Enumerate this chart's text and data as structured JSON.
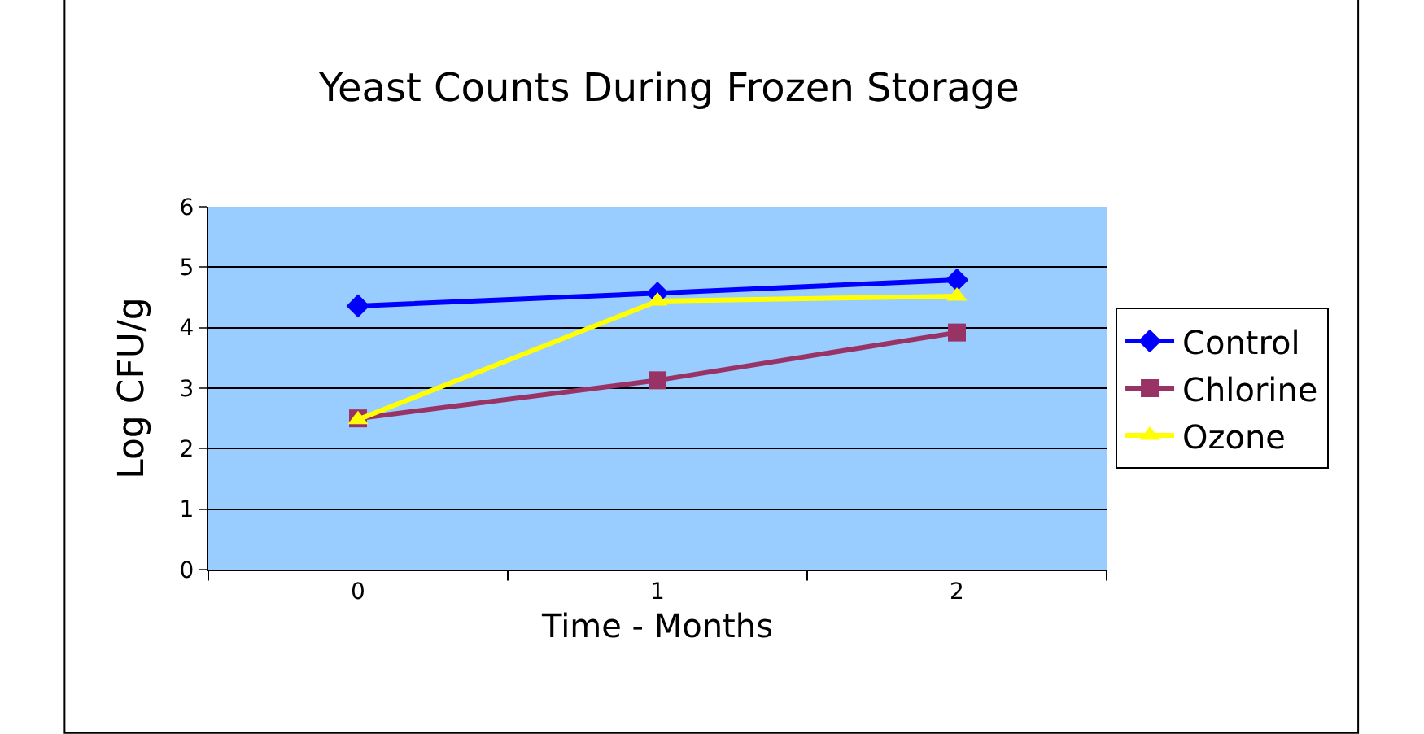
{
  "chart_data": {
    "type": "line",
    "title": "Yeast Counts During Frozen Storage",
    "xlabel": "Time - Months",
    "ylabel": "Log CFU/g",
    "categories": [
      "0",
      "1",
      "2"
    ],
    "series": [
      {
        "name": "Control",
        "color": "#0000ff",
        "values": [
          4.36,
          4.57,
          4.79
        ],
        "marker": "diamond"
      },
      {
        "name": "Chlorine",
        "color": "#993366",
        "values": [
          2.5,
          3.13,
          3.92
        ],
        "marker": "square"
      },
      {
        "name": "Ozone",
        "color": "#ffff00",
        "values": [
          2.48,
          4.44,
          4.52
        ],
        "marker": "triangle"
      }
    ],
    "ylim": [
      0,
      6
    ],
    "yticks": [
      0,
      1,
      2,
      3,
      4,
      5,
      6
    ],
    "grid": "y",
    "legend": "right",
    "line_style": "solid"
  }
}
